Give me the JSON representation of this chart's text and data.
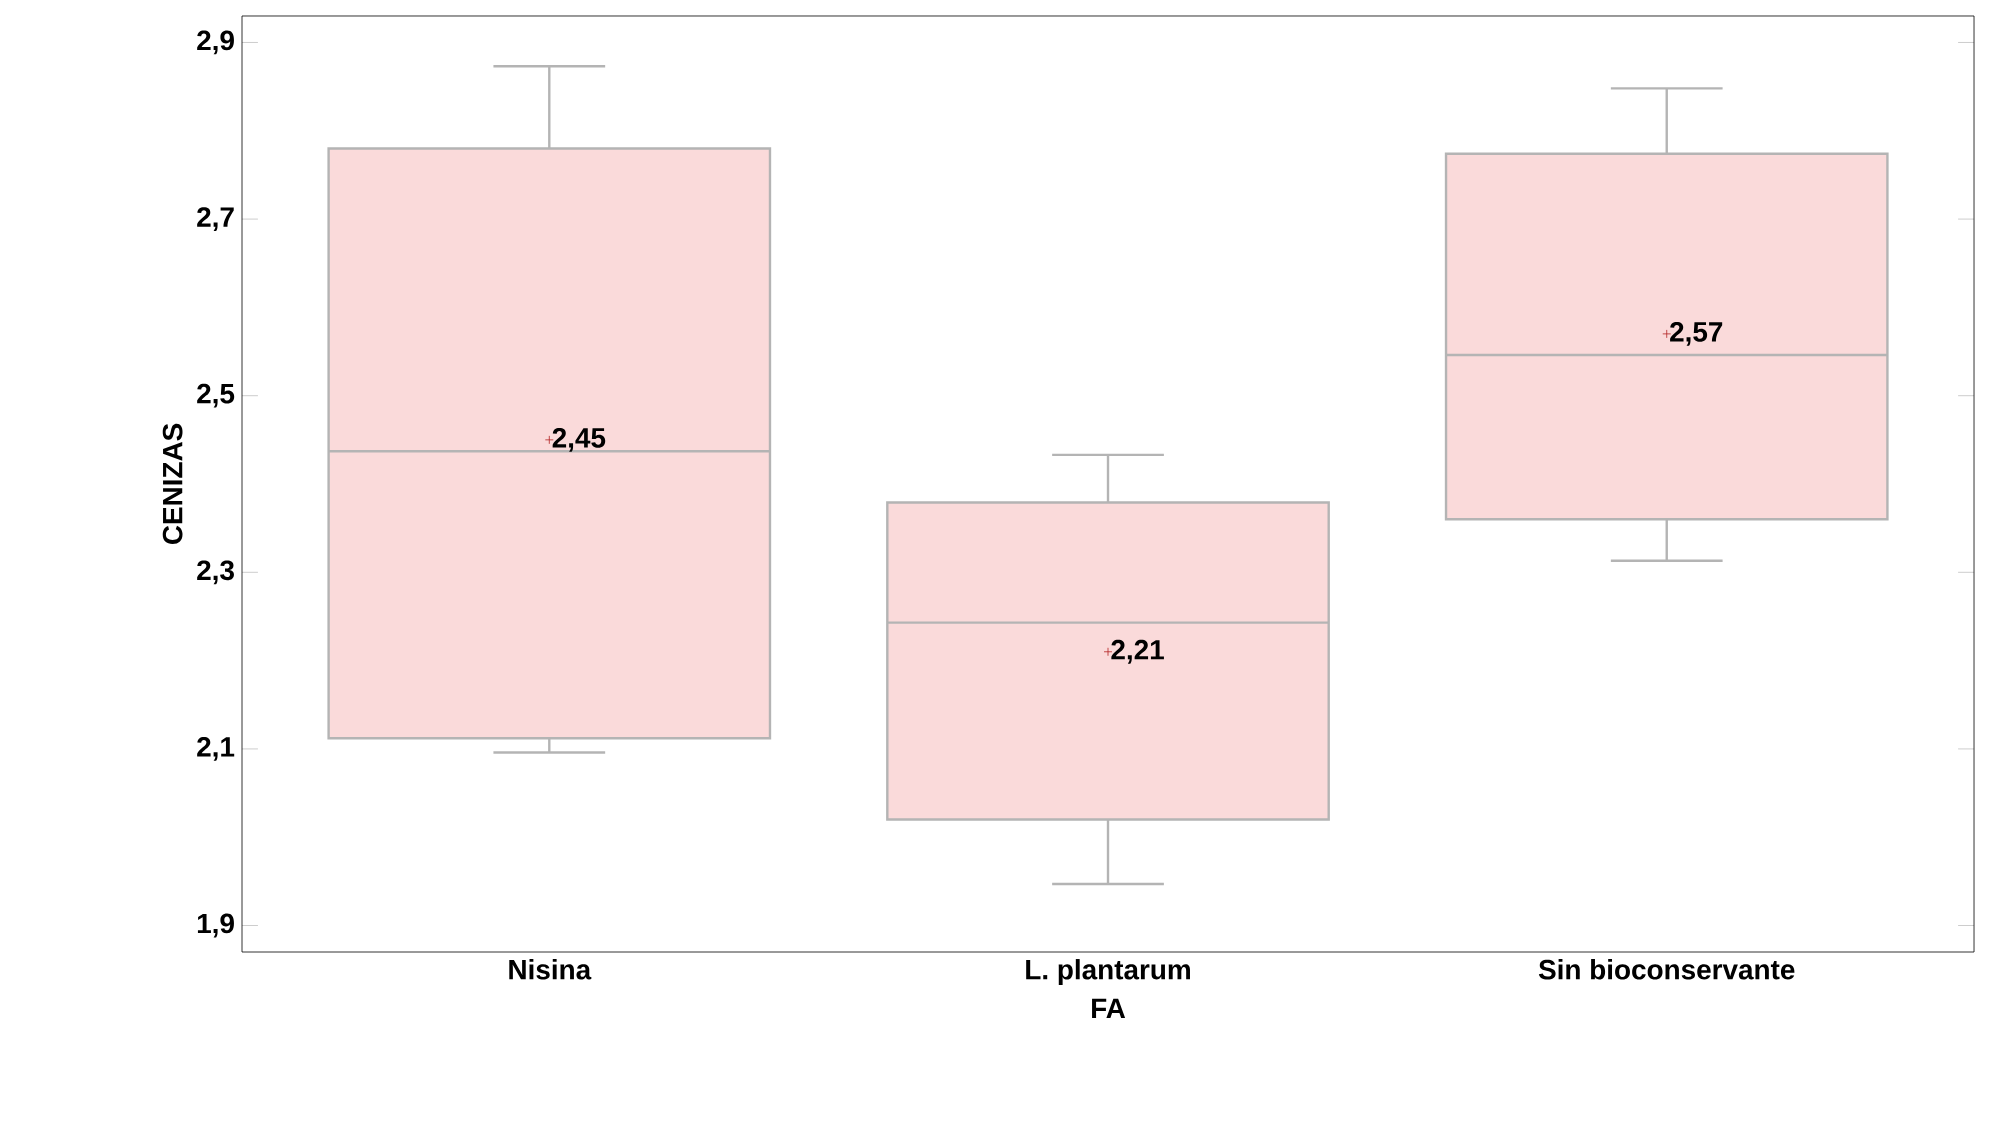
{
  "chart_data": {
    "type": "box",
    "xlabel": "FA",
    "ylabel": "CENIZAS",
    "categories": [
      "Nisina",
      "L. plantarum",
      "Sin bioconservante"
    ],
    "boxes": [
      {
        "low": 2.096,
        "q1": 2.112,
        "median": 2.437,
        "q3": 2.78,
        "high": 2.873,
        "mean": 2.45
      },
      {
        "low": 1.947,
        "q1": 2.02,
        "median": 2.243,
        "q3": 2.379,
        "high": 2.433,
        "mean": 2.21
      },
      {
        "low": 2.313,
        "q1": 2.36,
        "median": 2.546,
        "q3": 2.774,
        "high": 2.848,
        "mean": 2.57
      }
    ],
    "color": "#fadada",
    "ylim": [
      1.87,
      2.93
    ],
    "yticks": [
      {
        "value": 1.9,
        "label": "1,9"
      },
      {
        "value": 2.1,
        "label": "2,1"
      },
      {
        "value": 2.3,
        "label": "2,3"
      },
      {
        "value": 2.5,
        "label": "2,5"
      },
      {
        "value": 2.7,
        "label": "2,7"
      },
      {
        "value": 2.9,
        "label": "2,9"
      }
    ],
    "annotations": [
      "2,45",
      "2,21",
      "2,57"
    ]
  }
}
